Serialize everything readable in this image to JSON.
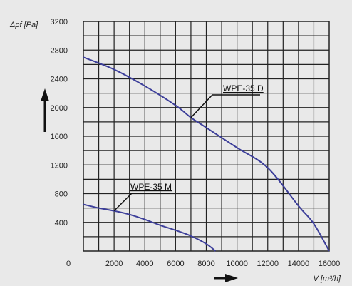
{
  "chart_data": {
    "type": "line",
    "ylabel": "Δpf [Pa]",
    "xlabel": "V [m³/h]",
    "xlim": [
      0,
      16000
    ],
    "ylim": [
      0,
      3200
    ],
    "x_ticks": [
      0,
      2000,
      4000,
      6000,
      8000,
      10000,
      12000,
      14000,
      16000
    ],
    "y_ticks": [
      400,
      800,
      1200,
      1600,
      2000,
      2400,
      2800,
      3200
    ],
    "grid": true,
    "series": [
      {
        "name": "WPE-35 D",
        "color": "#3d3f9a",
        "x": [
          0,
          2000,
          4000,
          6000,
          7000,
          8000,
          10000,
          12000,
          14000,
          15000,
          16000
        ],
        "y": [
          2700,
          2530,
          2300,
          2030,
          1860,
          1720,
          1440,
          1160,
          630,
          380,
          0
        ]
      },
      {
        "name": "WPE-35 M",
        "color": "#3d3f9a",
        "x": [
          0,
          1000,
          2000,
          3000,
          4000,
          5000,
          6000,
          7000,
          8000,
          8600
        ],
        "y": [
          650,
          600,
          560,
          510,
          440,
          360,
          290,
          210,
          100,
          0
        ]
      }
    ],
    "annotations": [
      {
        "text": "WPE-35 D",
        "series": 0
      },
      {
        "text": "WPE-35 M",
        "series": 1
      }
    ]
  }
}
